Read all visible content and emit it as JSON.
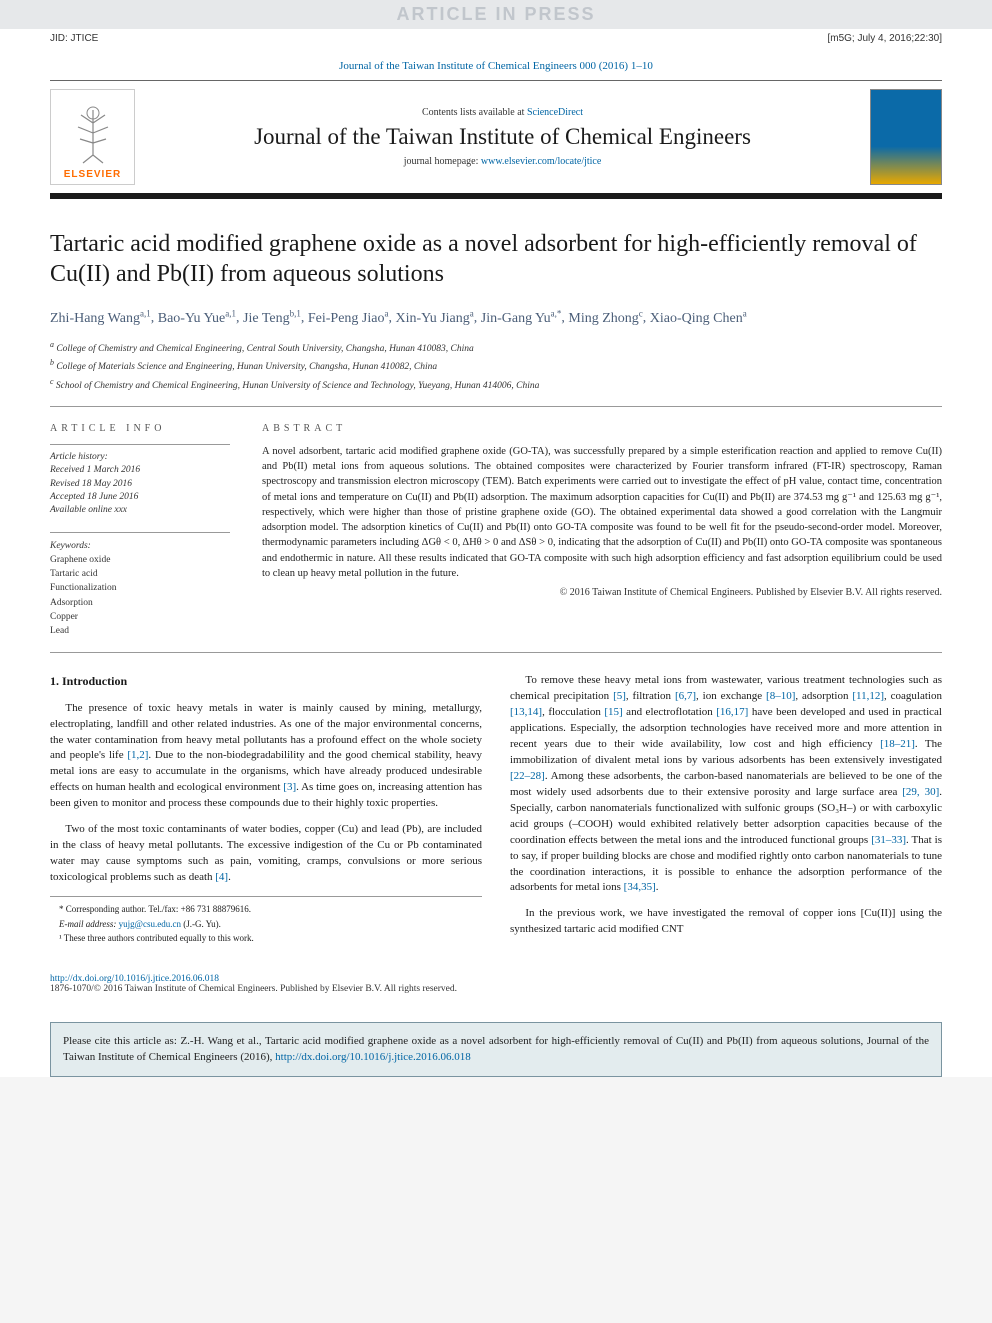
{
  "page": {
    "watermark_text": "ARTICLE IN PRESS",
    "jid": "JID: JTICE",
    "jid_right": "[m5G; July 4, 2016;22:30]",
    "journal_ref": "Journal of the Taiwan Institute of Chemical Engineers 000 (2016) 1–10",
    "colors": {
      "link": "#0065a4",
      "accent_orange": "#ff6c00",
      "banner_bg": "#e6e8ea",
      "cite_box_bg": "#e3ecee",
      "cite_box_border": "#7a94a0",
      "author_color": "#4b5e78"
    }
  },
  "masthead": {
    "contents_prefix": "Contents lists available at ",
    "contents_link_text": "ScienceDirect",
    "journal_title": "Journal of the Taiwan Institute of Chemical Engineers",
    "homepage_prefix": "journal homepage: ",
    "homepage_url": "www.elsevier.com/locate/jtice",
    "elsevier_label": "ELSEVIER"
  },
  "article": {
    "title": "Tartaric acid modified graphene oxide as a novel adsorbent for high-efficiently removal of Cu(II) and Pb(II) from aqueous solutions",
    "authors": [
      {
        "name": "Zhi-Hang Wang",
        "marks": "a,1"
      },
      {
        "name": "Bao-Yu Yue",
        "marks": "a,1"
      },
      {
        "name": "Jie Teng",
        "marks": "b,1"
      },
      {
        "name": "Fei-Peng Jiao",
        "marks": "a"
      },
      {
        "name": "Xin-Yu Jiang",
        "marks": "a"
      },
      {
        "name": "Jin-Gang Yu",
        "marks": "a,*"
      },
      {
        "name": "Ming Zhong",
        "marks": "c"
      },
      {
        "name": "Xiao-Qing Chen",
        "marks": "a"
      }
    ],
    "affiliations": [
      {
        "key": "a",
        "text": "College of Chemistry and Chemical Engineering, Central South University, Changsha, Hunan 410083, China"
      },
      {
        "key": "b",
        "text": "College of Materials Science and Engineering, Hunan University, Changsha, Hunan 410082, China"
      },
      {
        "key": "c",
        "text": "School of Chemistry and Chemical Engineering, Hunan University of Science and Technology, Yueyang, Hunan 414006, China"
      }
    ]
  },
  "info": {
    "label": "article info",
    "history_label": "Article history:",
    "received": "Received 1 March 2016",
    "revised": "Revised 18 May 2016",
    "accepted": "Accepted 18 June 2016",
    "available": "Available online xxx",
    "keywords_label": "Keywords:",
    "keywords": [
      "Graphene oxide",
      "Tartaric acid",
      "Functionalization",
      "Adsorption",
      "Copper",
      "Lead"
    ]
  },
  "abstract": {
    "label": "abstract",
    "text": "A novel adsorbent, tartaric acid modified graphene oxide (GO-TA), was successfully prepared by a simple esterification reaction and applied to remove Cu(II) and Pb(II) metal ions from aqueous solutions. The obtained composites were characterized by Fourier transform infrared (FT-IR) spectroscopy, Raman spectroscopy and transmission electron microscopy (TEM). Batch experiments were carried out to investigate the effect of pH value, contact time, concentration of metal ions and temperature on Cu(II) and Pb(II) adsorption. The maximum adsorption capacities for Cu(II) and Pb(II) are 374.53 mg g⁻¹ and 125.63 mg g⁻¹, respectively, which were higher than those of pristine graphene oxide (GO). The obtained experimental data showed a good correlation with the Langmuir adsorption model. The adsorption kinetics of Cu(II) and Pb(II) onto GO-TA composite was found to be well fit for the pseudo-second-order model. Moreover, thermodynamic parameters including ΔGθ < 0, ΔHθ > 0 and ΔSθ > 0, indicating that the adsorption of Cu(II) and Pb(II) onto GO-TA composite was spontaneous and endothermic in nature. All these results indicated that GO-TA composite with such high adsorption efficiency and fast adsorption equilibrium could be used to clean up heavy metal pollution in the future.",
    "copyright": "© 2016 Taiwan Institute of Chemical Engineers. Published by Elsevier B.V. All rights reserved."
  },
  "body": {
    "intro_heading": "1. Introduction",
    "p1": "The presence of toxic heavy metals in water is mainly caused by mining, metallurgy, electroplating, landfill and other related industries. As one of the major environmental concerns, the water contamination from heavy metal pollutants has a profound effect on the whole society and people's life [1,2]. Due to the non-biodegradabilility and the good chemical stability, heavy metal ions are easy to accumulate in the organisms, which have already produced undesirable effects on human health and ecological environment [3]. As time goes on, increasing attention has been given to monitor and process these compounds due to their highly toxic properties.",
    "p2": "Two of the most toxic contaminants of water bodies, copper (Cu) and lead (Pb), are included in the class of heavy metal pollutants. The excessive indigestion of the Cu or Pb contaminated water may cause symptoms such as pain, vomiting, cramps, convulsions or more serious toxicological problems such as death [4].",
    "p3": "To remove these heavy metal ions from wastewater, various treatment technologies such as chemical precipitation [5], filtration [6,7], ion exchange [8–10], adsorption [11,12], coagulation [13,14], flocculation [15] and electroflotation [16,17] have been developed and used in practical applications. Especially, the adsorption technologies have received more and more attention in recent years due to their wide availability, low cost and high efficiency [18–21]. The immobilization of divalent metal ions by various adsorbents has been extensively investigated [22–28]. Among these adsorbents, the carbon-based nanomaterials are believed to be one of the most widely used adsorbents due to their extensive porosity and large surface area [29, 30]. Specially, carbon nanomaterials functionalized with sulfonic groups (SO₃H–) or with carboxylic acid groups (–COOH) would exhibited relatively better adsorption capacities because of the coordination effects between the metal ions and the introduced functional groups [31–33]. That is to say, if proper building blocks are chose and modified rightly onto carbon nanomaterials to tune the coordination interactions, it is possible to enhance the adsorption performance of the adsorbents for metal ions [34,35].",
    "p4": "In the previous work, we have investigated the removal of copper ions [Cu(II)] using the synthesized tartaric acid modified CNT"
  },
  "footnotes": {
    "corresponding": "* Corresponding author. Tel./fax: +86 731 88879616.",
    "email_label": "E-mail address: ",
    "email_value": "yujg@csu.edu.cn",
    "email_attribution": " (J.-G. Yu).",
    "equal": "¹ These three authors contributed equally to this work."
  },
  "footer": {
    "doi": "http://dx.doi.org/10.1016/j.jtice.2016.06.018",
    "issn_line": "1876-1070/© 2016 Taiwan Institute of Chemical Engineers. Published by Elsevier B.V. All rights reserved."
  },
  "cite_box": {
    "text_prefix": "Please cite this article as: Z.-H. Wang et al., Tartaric acid modified graphene oxide as a novel adsorbent for high-efficiently removal of Cu(II) and Pb(II) from aqueous solutions, Journal of the Taiwan Institute of Chemical Engineers (2016), ",
    "doi": "http://dx.doi.org/10.1016/j.jtice.2016.06.018"
  }
}
